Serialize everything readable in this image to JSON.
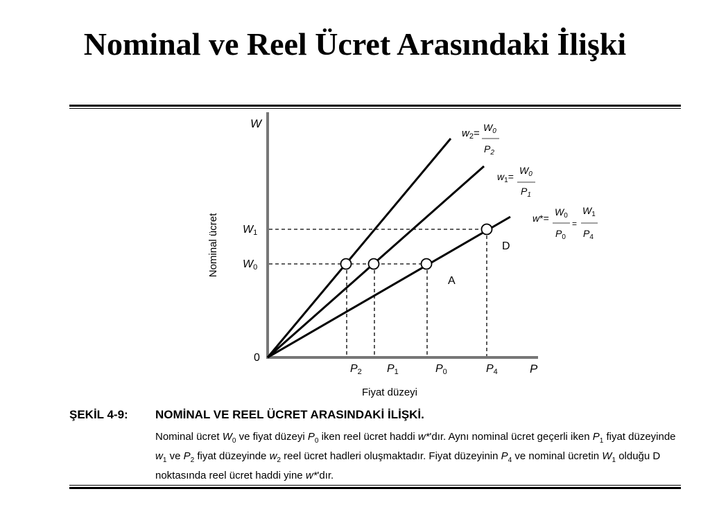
{
  "title": "Nominal ve Reel Ücret Arasındaki İlişki",
  "diagram": {
    "y_axis_letter": "W",
    "x_axis_letter": "P",
    "y_axis_label": "Nominal ücret",
    "x_axis_label": "Fiyat düzeyi",
    "origin": "0",
    "wage_levels": [
      "W1",
      "W0"
    ],
    "price_levels": [
      "P2",
      "P1",
      "P0",
      "P4"
    ],
    "point_labels": [
      "D",
      "A"
    ],
    "lines": [
      {
        "name": "w2",
        "formula": "w2 = W0 / P2"
      },
      {
        "name": "w1",
        "formula": "w1 = W0 / P1"
      },
      {
        "name": "w*",
        "formula": "w* = W0 / P0 = W1 / P4"
      }
    ]
  },
  "caption": {
    "label": "ŞEKİL 4-9:",
    "title": "NOMİNAL VE REEL ÜCRET ARASINDAKİ İLİŞKİ.",
    "text": "Nominal ücret W0 ve fiyat düzeyi P0 iken reel ücret haddi w*'dır. Aynı nominal ücret geçerli iken P1 fiyat düzeyinde w1 ve P2 fiyat düzeyinde w2 reel ücret hadleri oluşmaktadır. Fiyat düzeyinin P4 ve nominal ücretin W1 olduğu D noktasında reel ücret haddi yine w*'dır."
  },
  "colors": {
    "ink": "#000000",
    "background": "#ffffff"
  }
}
